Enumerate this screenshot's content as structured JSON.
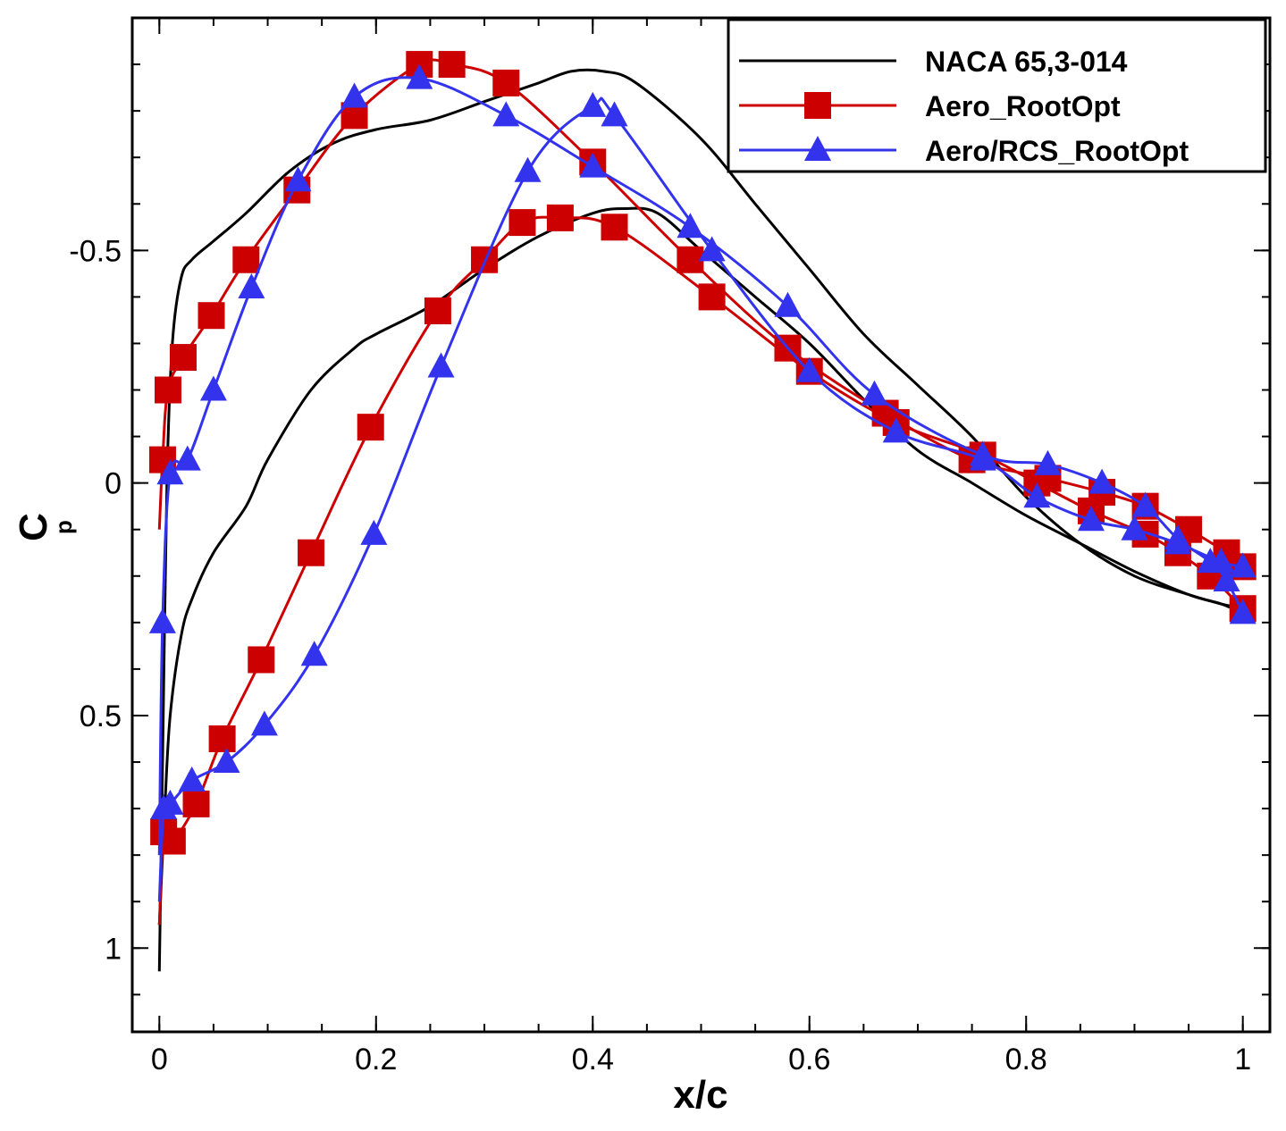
{
  "chart_data": {
    "type": "line",
    "title": "",
    "xlabel": "x/c",
    "ylabel_main": "C",
    "ylabel_sub": "p",
    "xlim": [
      -0.025,
      1.025
    ],
    "ylim": [
      1.18,
      -1.0
    ],
    "y_inverted": true,
    "grid": false,
    "legend_position": "top-right",
    "x_ticks": [
      {
        "value": 0,
        "label": "0"
      },
      {
        "value": 0.2,
        "label": "0.2"
      },
      {
        "value": 0.4,
        "label": "0.4"
      },
      {
        "value": 0.6,
        "label": "0.6"
      },
      {
        "value": 0.8,
        "label": "0.8"
      },
      {
        "value": 1,
        "label": "1"
      }
    ],
    "y_ticks": [
      {
        "value": -0.5,
        "label": "-0.5"
      },
      {
        "value": 0,
        "label": "0"
      },
      {
        "value": 0.5,
        "label": "0.5"
      },
      {
        "value": 1,
        "label": "1"
      }
    ],
    "series": [
      {
        "name": "NACA 65,3-014",
        "color": "#000000",
        "marker": "none",
        "upper": {
          "x": [
            0,
            0.003,
            0.007,
            0.012,
            0.02,
            0.03,
            0.05,
            0.08,
            0.12,
            0.16,
            0.2,
            0.25,
            0.3,
            0.35,
            0.38,
            0.41,
            0.44,
            0.5,
            0.55,
            0.6,
            0.65,
            0.7,
            0.75,
            0.8,
            0.85,
            0.9,
            0.95,
            0.98,
            1.0
          ],
          "y": [
            1.05,
            0.6,
            0.0,
            -0.3,
            -0.44,
            -0.48,
            -0.52,
            -0.58,
            -0.67,
            -0.73,
            -0.76,
            -0.78,
            -0.82,
            -0.86,
            -0.885,
            -0.885,
            -0.86,
            -0.74,
            -0.6,
            -0.46,
            -0.32,
            -0.21,
            -0.1,
            0.03,
            0.13,
            0.2,
            0.24,
            0.26,
            0.27
          ]
        },
        "lower": {
          "x": [
            0,
            0.005,
            0.01,
            0.02,
            0.03,
            0.05,
            0.08,
            0.1,
            0.14,
            0.18,
            0.2,
            0.25,
            0.3,
            0.35,
            0.4,
            0.43,
            0.46,
            0.5,
            0.55,
            0.6,
            0.65,
            0.7,
            0.75,
            0.8,
            0.85,
            0.9,
            0.95,
            0.98,
            1.0
          ],
          "y": [
            0.95,
            0.7,
            0.5,
            0.33,
            0.25,
            0.15,
            0.05,
            -0.05,
            -0.2,
            -0.29,
            -0.32,
            -0.38,
            -0.46,
            -0.53,
            -0.58,
            -0.59,
            -0.58,
            -0.5,
            -0.4,
            -0.3,
            -0.18,
            -0.07,
            0.0,
            0.07,
            0.13,
            0.19,
            0.24,
            0.26,
            0.28
          ]
        }
      },
      {
        "name": "Aero_RootOpt",
        "color": "#cc0000",
        "marker": "square",
        "upper": {
          "x": [
            0,
            0.003,
            0.008,
            0.022,
            0.048,
            0.08,
            0.127,
            0.18,
            0.24,
            0.27,
            0.32,
            0.4,
            0.49,
            0.58,
            0.67,
            0.75,
            0.82,
            0.87,
            0.91,
            0.95,
            0.985,
            1.0
          ],
          "y": [
            0.1,
            -0.05,
            -0.2,
            -0.27,
            -0.36,
            -0.48,
            -0.63,
            -0.79,
            -0.9,
            -0.9,
            -0.86,
            -0.69,
            -0.48,
            -0.29,
            -0.15,
            -0.05,
            -0.01,
            0.02,
            0.05,
            0.1,
            0.15,
            0.18
          ]
        },
        "lower": {
          "x": [
            0,
            0.004,
            0.012,
            0.034,
            0.058,
            0.094,
            0.14,
            0.195,
            0.257,
            0.3,
            0.335,
            0.37,
            0.42,
            0.51,
            0.6,
            0.68,
            0.76,
            0.81,
            0.86,
            0.91,
            0.94,
            0.97,
            1.0
          ],
          "y": [
            0.95,
            0.75,
            0.77,
            0.69,
            0.55,
            0.38,
            0.15,
            -0.12,
            -0.37,
            -0.48,
            -0.56,
            -0.57,
            -0.55,
            -0.4,
            -0.24,
            -0.13,
            -0.06,
            0.0,
            0.06,
            0.11,
            0.15,
            0.2,
            0.27
          ]
        }
      },
      {
        "name": "Aero/RCS_RootOpt",
        "color": "#3333ee",
        "marker": "triangle",
        "upper": {
          "x": [
            0,
            0.003,
            0.01,
            0.026,
            0.05,
            0.085,
            0.128,
            0.18,
            0.24,
            0.32,
            0.4,
            0.49,
            0.58,
            0.66,
            0.76,
            0.82,
            0.87,
            0.91,
            0.94,
            0.97,
            0.985,
            1.0
          ],
          "y": [
            0.8,
            0.3,
            -0.02,
            -0.05,
            -0.2,
            -0.42,
            -0.65,
            -0.83,
            -0.87,
            -0.79,
            -0.68,
            -0.55,
            -0.38,
            -0.19,
            -0.06,
            -0.04,
            0.0,
            0.05,
            0.12,
            0.17,
            0.21,
            0.28
          ]
        },
        "lower": {
          "x": [
            0,
            0.004,
            0.01,
            0.03,
            0.062,
            0.097,
            0.143,
            0.198,
            0.26,
            0.34,
            0.4,
            0.42,
            0.51,
            0.6,
            0.68,
            0.76,
            0.81,
            0.86,
            0.9,
            0.94,
            0.98,
            1.0
          ],
          "y": [
            0.9,
            0.7,
            0.69,
            0.64,
            0.6,
            0.52,
            0.37,
            0.11,
            -0.25,
            -0.67,
            -0.81,
            -0.79,
            -0.5,
            -0.24,
            -0.11,
            -0.05,
            0.03,
            0.08,
            0.1,
            0.13,
            0.17,
            0.18
          ]
        }
      }
    ]
  }
}
